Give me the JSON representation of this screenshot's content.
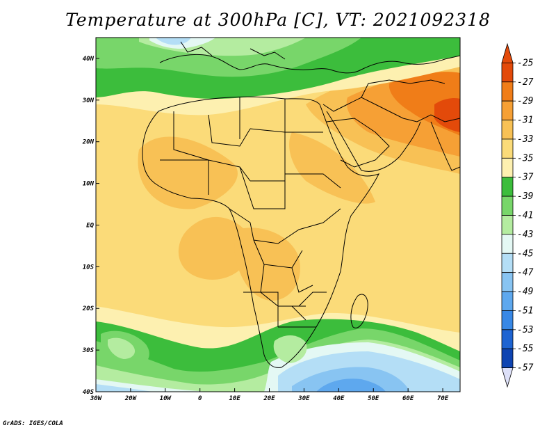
{
  "title": "Temperature at 300hPa [C], VT: 2021092318",
  "credit": "GrADS: IGES/COLA",
  "map": {
    "lon_range": [
      -30,
      75
    ],
    "lat_range": [
      -40,
      45
    ],
    "x_ticks": [
      "30W",
      "20W",
      "10W",
      "0",
      "10E",
      "20E",
      "30E",
      "40E",
      "50E",
      "60E",
      "70E"
    ],
    "x_tick_values": [
      -30,
      -20,
      -10,
      0,
      10,
      20,
      30,
      40,
      50,
      60,
      70
    ],
    "y_ticks": [
      "40S",
      "30S",
      "20S",
      "10S",
      "EQ",
      "10N",
      "20N",
      "30N",
      "40N"
    ],
    "y_tick_values": [
      -40,
      -30,
      -20,
      -10,
      0,
      10,
      20,
      30,
      40
    ]
  },
  "colorbar": {
    "labels": [
      "-25",
      "-27",
      "-29",
      "-31",
      "-33",
      "-35",
      "-37",
      "-39",
      "-41",
      "-43",
      "-45",
      "-47",
      "-49",
      "-51",
      "-53",
      "-55",
      "-57"
    ],
    "colors": [
      "#e34a0a",
      "#f07d18",
      "#f6a035",
      "#f8c155",
      "#fbdb79",
      "#fdf0b0",
      "#3cbd3c",
      "#78d66a",
      "#b4eca0",
      "#e4f8f4",
      "#b4def6",
      "#88c4f2",
      "#5ea8ee",
      "#3888e6",
      "#1e64d2",
      "#0e44b2",
      "#0a1e82"
    ]
  },
  "palette": {
    "c25": "#e34a0a",
    "c27": "#f07d18",
    "c29": "#f6a035",
    "c31": "#f8c155",
    "c33": "#fbdb79",
    "c35": "#fdf0b0",
    "c37": "#3cbd3c",
    "c39": "#78d66a",
    "c41": "#b4eca0",
    "c43": "#e4f8f4",
    "c45": "#b4def6",
    "c47": "#88c4f2",
    "c49": "#5ea8ee",
    "c51": "#3888e6"
  }
}
